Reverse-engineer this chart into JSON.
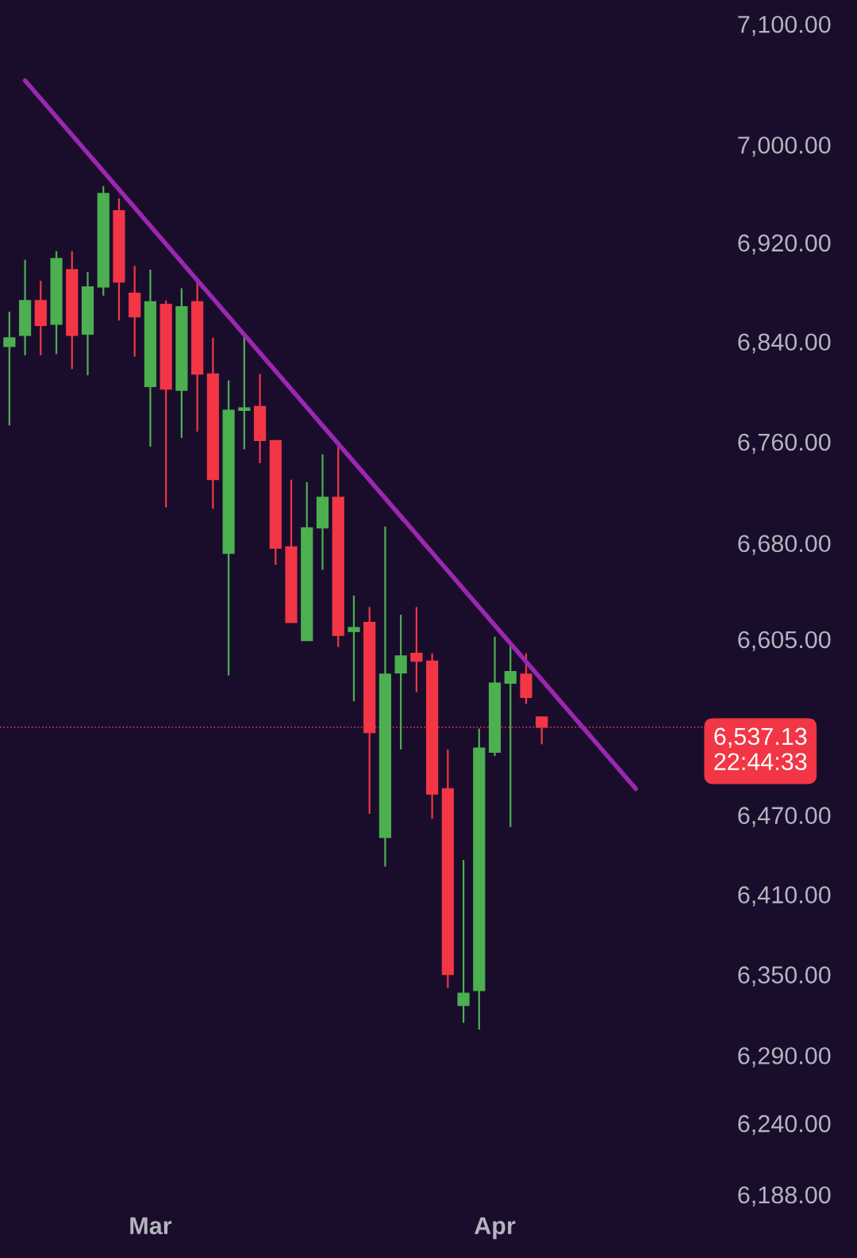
{
  "chart_data": {
    "type": "candlestick",
    "categories": [
      null,
      null,
      null,
      null,
      null,
      null,
      null,
      null,
      null,
      "Mar",
      null,
      null,
      null,
      null,
      null,
      null,
      null,
      null,
      null,
      null,
      null,
      null,
      null,
      null,
      null,
      null,
      null,
      null,
      null,
      null,
      null,
      "Apr",
      null,
      null,
      null,
      null,
      null,
      null,
      null,
      null,
      null,
      null,
      null,
      null,
      null
    ],
    "ohlc": [
      [
        6836,
        6864,
        6773,
        6843
      ],
      [
        6845,
        6906,
        6829,
        6873
      ],
      [
        6873,
        6889,
        6829,
        6853
      ],
      [
        6854,
        6913,
        6830,
        6907
      ],
      [
        6898,
        6913,
        6818,
        6845
      ],
      [
        6846,
        6896,
        6813,
        6884
      ],
      [
        6884,
        6966,
        6877,
        6960
      ],
      [
        6946,
        6956,
        6857,
        6888
      ],
      [
        6879,
        6901,
        6828,
        6860
      ],
      [
        6804,
        6898,
        6756,
        6872
      ],
      [
        6870,
        6873,
        6708,
        6802
      ],
      [
        6801,
        6883,
        6763,
        6868
      ],
      [
        6872,
        6889,
        6768,
        6814
      ],
      [
        6814,
        6843,
        6707,
        6730
      ],
      [
        6672,
        6809,
        6577,
        6785
      ],
      [
        6785,
        6845,
        6754,
        6787
      ],
      [
        6788,
        6814,
        6743,
        6761
      ],
      [
        6761,
        6761,
        6663,
        6676
      ],
      [
        6677,
        6730,
        6618,
        6618
      ],
      [
        6604,
        6728,
        6604,
        6692
      ],
      [
        6692,
        6750,
        6659,
        6716
      ],
      [
        6716,
        6756,
        6599,
        6608
      ],
      [
        6611,
        6639,
        6557,
        6614
      ],
      [
        6618,
        6630,
        6471,
        6533
      ],
      [
        6453,
        6693,
        6431,
        6578
      ],
      [
        6579,
        6624,
        6520,
        6592
      ],
      [
        6594,
        6630,
        6564,
        6588
      ],
      [
        6588,
        6594,
        6467,
        6486
      ],
      [
        6490,
        6520,
        6340,
        6350
      ],
      [
        6327,
        6436,
        6314,
        6336
      ],
      [
        6338,
        6536,
        6309,
        6521
      ],
      [
        6518,
        6607,
        6515,
        6571
      ],
      [
        6571,
        6601,
        6461,
        6580
      ],
      [
        6578,
        6594,
        6555,
        6560
      ],
      [
        6545,
        6545,
        6524,
        6537.13
      ],
      null,
      null,
      null,
      null,
      null,
      null,
      null,
      null,
      null,
      null
    ],
    "colors": [
      "#4caf50",
      "#4caf50",
      "#f23645",
      "#4caf50",
      "#f23645",
      "#4caf50",
      "#4caf50",
      "#f23645",
      "#f23645",
      "#4caf50",
      "#f23645",
      "#4caf50",
      "#f23645",
      "#f23645",
      "#4caf50",
      "#4caf50",
      "#f23645",
      "#f23645",
      "#f23645",
      "#4caf50",
      "#4caf50",
      "#f23645",
      "#4caf50",
      "#f23645",
      "#4caf50",
      "#4caf50",
      "#f23645",
      "#f23645",
      "#f23645",
      "#4caf50",
      "#4caf50",
      "#4caf50",
      "#4caf50",
      "#f23645",
      "#f23645",
      null,
      null,
      null,
      null,
      null,
      null,
      null,
      null,
      null,
      null
    ],
    "series": [
      {
        "type": "line",
        "color": "#9c27b0",
        "values": [
          null,
          7053,
          null,
          null,
          null,
          null,
          null,
          null,
          null,
          null,
          null,
          null,
          null,
          null,
          null,
          null,
          null,
          null,
          null,
          null,
          null,
          null,
          null,
          null,
          null,
          null,
          null,
          null,
          null,
          null,
          null,
          null,
          null,
          null,
          null,
          null,
          null,
          null,
          null,
          null,
          6490,
          null,
          null,
          null,
          null
        ]
      }
    ],
    "log": true,
    "ylim": [
      6188,
      7120
    ],
    "yticks": [
      {
        "value": 6188,
        "label": "6,188.00"
      },
      {
        "value": 6240,
        "label": "6,240.00"
      },
      {
        "value": 6290,
        "label": "6,290.00"
      },
      {
        "value": 6350,
        "label": "6,350.00"
      },
      {
        "value": 6410,
        "label": "6,410.00"
      },
      {
        "value": 6470,
        "label": "6,470.00"
      },
      {
        "value": 6605,
        "label": "6,605.00"
      },
      {
        "value": 6680,
        "label": "6,680.00"
      },
      {
        "value": 6760,
        "label": "6,760.00"
      },
      {
        "value": 6840,
        "label": "6,840.00"
      },
      {
        "value": 6920,
        "label": "6,920.00"
      },
      {
        "value": 7000,
        "label": "7,000.00"
      },
      {
        "value": 7100,
        "label": "7,100.00"
      }
    ],
    "ref_lines": [
      {
        "axis": "y",
        "value": 6537.13,
        "label": "6,537.13",
        "color": "#f23645",
        "line_style": "dotted"
      }
    ],
    "annotations": [
      "22:44:33"
    ],
    "grid": false,
    "legend": false
  }
}
